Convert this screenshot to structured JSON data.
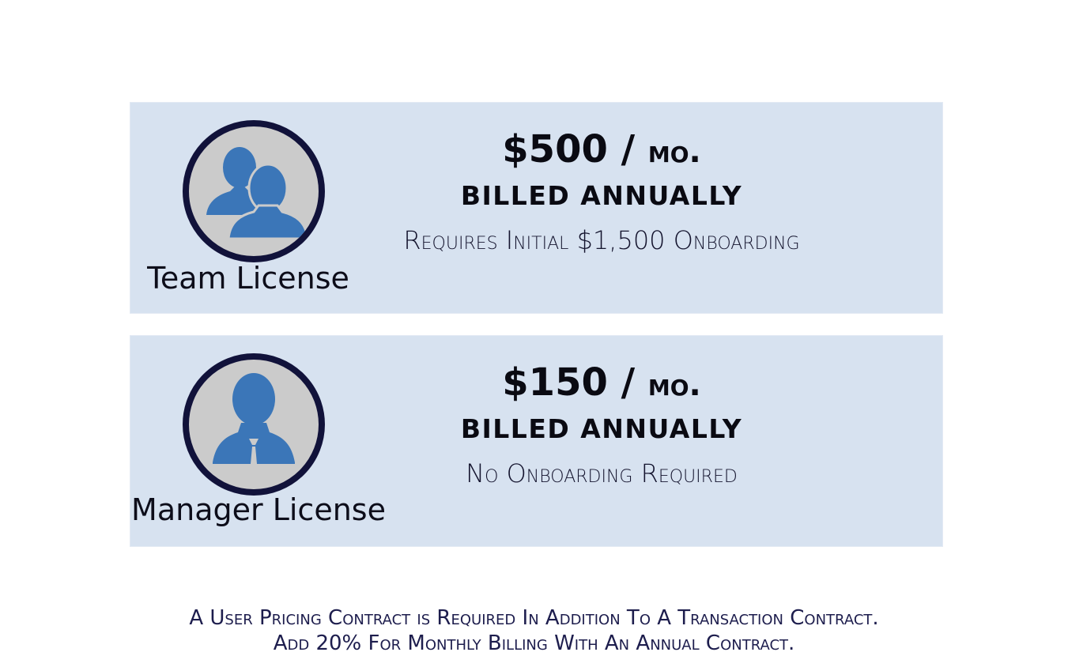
{
  "licenses": [
    {
      "name": "Team License",
      "price_amount": "$500 /",
      "price_unit": "mo.",
      "billing": "BILLED ANNUALLY",
      "requirement": "Requires Initial $1,500 Onboarding",
      "icon": "team-users-icon"
    },
    {
      "name": "Manager License",
      "price_amount": "$150 /",
      "price_unit": "mo.",
      "billing": "BILLED ANNUALLY",
      "requirement": "No Onboarding Required",
      "icon": "manager-user-icon"
    }
  ],
  "footer": {
    "line1": "A User Pricing Contract is Required In Addition To A Transaction Contract.",
    "line2": "Add 20% For Monthly Billing With An Annual Contract."
  },
  "colors": {
    "card_background": "#d7e2f0",
    "avatar_ring": "#11123a",
    "avatar_fill": "#cbcbcb",
    "icon_blue": "#3b76b8"
  }
}
